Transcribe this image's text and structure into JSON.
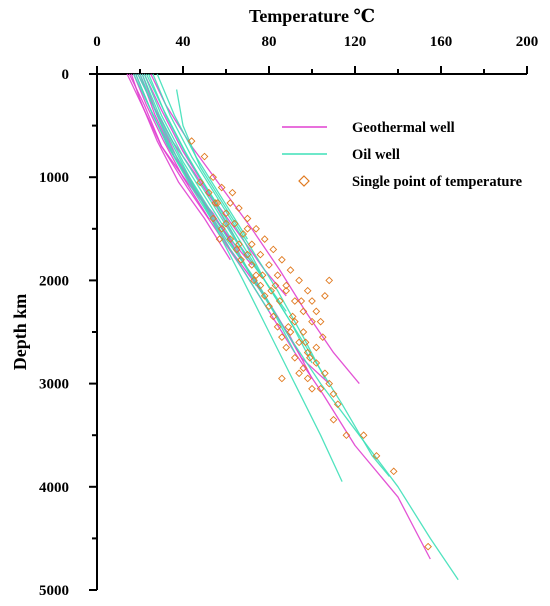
{
  "chart_data": {
    "type": "line",
    "xlabel": "Temperature ℃",
    "ylabel": "Depth km",
    "xlim": [
      0,
      200
    ],
    "ylim": [
      0,
      5000
    ],
    "x_ticks": [
      0,
      40,
      80,
      120,
      160,
      200
    ],
    "y_ticks": [
      0,
      1000,
      2000,
      3000,
      4000,
      5000
    ],
    "x_axis_position": "top",
    "y_axis_inverted": true,
    "grid": false,
    "legend_position": "top-right",
    "legend": [
      {
        "label": "Geothermal well",
        "marker": "line",
        "color": "#e040d0"
      },
      {
        "label": "Oil well",
        "marker": "line",
        "color": "#3ee0b8"
      },
      {
        "label": "Single point of temperature",
        "marker": "diamond",
        "color": "#e07a20"
      }
    ],
    "series": [
      {
        "name": "Geothermal well",
        "kind": "line",
        "color": "#e040d0",
        "lines": [
          [
            [
              15,
              0
            ],
            [
              22,
              300
            ],
            [
              30,
              700
            ],
            [
              42,
              1100
            ],
            [
              55,
              1500
            ],
            [
              68,
              1900
            ],
            [
              80,
              2300
            ],
            [
              92,
              2700
            ],
            [
              105,
              3100
            ],
            [
              120,
              3600
            ],
            [
              140,
              4100
            ],
            [
              155,
              4700
            ]
          ],
          [
            [
              18,
              0
            ],
            [
              24,
              300
            ],
            [
              33,
              700
            ],
            [
              46,
              1150
            ],
            [
              60,
              1550
            ],
            [
              72,
              1950
            ],
            [
              84,
              2350
            ],
            [
              95,
              2750
            ],
            [
              108,
              3000
            ]
          ],
          [
            [
              20,
              0
            ],
            [
              27,
              400
            ],
            [
              36,
              800
            ],
            [
              48,
              1200
            ],
            [
              62,
              1700
            ],
            [
              76,
              2100
            ],
            [
              90,
              2550
            ],
            [
              100,
              2950
            ]
          ],
          [
            [
              16,
              0
            ],
            [
              20,
              250
            ],
            [
              28,
              650
            ],
            [
              38,
              1050
            ],
            [
              50,
              1400
            ],
            [
              62,
              1800
            ]
          ],
          [
            [
              22,
              0
            ],
            [
              30,
              350
            ],
            [
              40,
              750
            ],
            [
              52,
              1150
            ],
            [
              66,
              1550
            ],
            [
              78,
              1900
            ],
            [
              88,
              2150
            ]
          ],
          [
            [
              25,
              0
            ],
            [
              32,
              300
            ],
            [
              44,
              700
            ],
            [
              58,
              1100
            ],
            [
              72,
              1500
            ],
            [
              85,
              1900
            ],
            [
              97,
              2300
            ],
            [
              110,
              2700
            ],
            [
              122,
              3000
            ]
          ],
          [
            [
              14,
              0
            ],
            [
              22,
              350
            ],
            [
              30,
              700
            ],
            [
              42,
              1050
            ],
            [
              54,
              1350
            ],
            [
              64,
              1700
            ]
          ],
          [
            [
              19,
              0
            ],
            [
              26,
              300
            ],
            [
              35,
              650
            ],
            [
              45,
              950
            ],
            [
              56,
              1300
            ],
            [
              66,
              1650
            ],
            [
              78,
              2000
            ]
          ],
          [
            [
              21,
              0
            ],
            [
              28,
              400
            ],
            [
              38,
              850
            ],
            [
              50,
              1250
            ],
            [
              62,
              1600
            ],
            [
              72,
              1850
            ]
          ],
          [
            [
              17,
              0
            ],
            [
              23,
              300
            ],
            [
              31,
              650
            ],
            [
              40,
              1000
            ],
            [
              52,
              1400
            ]
          ]
        ]
      },
      {
        "name": "Oil well",
        "kind": "line",
        "color": "#3ee0b8",
        "lines": [
          [
            [
              18,
              0
            ],
            [
              26,
              400
            ],
            [
              36,
              800
            ],
            [
              48,
              1200
            ],
            [
              60,
              1600
            ],
            [
              74,
              2000
            ],
            [
              88,
              2500
            ],
            [
              104,
              3000
            ],
            [
              122,
              3500
            ],
            [
              140,
              4000
            ],
            [
              155,
              4500
            ],
            [
              168,
              4900
            ]
          ],
          [
            [
              20,
              0
            ],
            [
              28,
              400
            ],
            [
              38,
              800
            ],
            [
              48,
              1200
            ],
            [
              58,
              1600
            ],
            [
              68,
              2000
            ],
            [
              80,
              2500
            ],
            [
              92,
              3000
            ],
            [
              104,
              3500
            ],
            [
              114,
              3950
            ]
          ],
          [
            [
              22,
              0
            ],
            [
              30,
              400
            ],
            [
              40,
              800
            ],
            [
              52,
              1200
            ],
            [
              64,
              1600
            ],
            [
              78,
              2000
            ],
            [
              90,
              2400
            ],
            [
              102,
              2800
            ],
            [
              114,
              3200
            ],
            [
              128,
              3700
            ],
            [
              136,
              3900
            ]
          ],
          [
            [
              24,
              0
            ],
            [
              32,
              400
            ],
            [
              42,
              800
            ],
            [
              54,
              1200
            ],
            [
              66,
              1600
            ],
            [
              78,
              2000
            ],
            [
              90,
              2400
            ],
            [
              100,
              2800
            ]
          ],
          [
            [
              19,
              0
            ],
            [
              26,
              300
            ],
            [
              34,
              700
            ],
            [
              46,
              1100
            ],
            [
              58,
              1500
            ],
            [
              70,
              1900
            ],
            [
              82,
              2300
            ],
            [
              92,
              2700
            ]
          ],
          [
            [
              26,
              0
            ],
            [
              34,
              400
            ],
            [
              44,
              800
            ],
            [
              56,
              1200
            ],
            [
              68,
              1600
            ],
            [
              78,
              2000
            ],
            [
              88,
              2300
            ]
          ],
          [
            [
              21,
              0
            ],
            [
              29,
              400
            ],
            [
              40,
              850
            ],
            [
              52,
              1250
            ],
            [
              64,
              1650
            ],
            [
              74,
              2050
            ]
          ],
          [
            [
              23,
              0
            ],
            [
              31,
              350
            ],
            [
              41,
              750
            ],
            [
              52,
              1150
            ],
            [
              62,
              1500
            ],
            [
              70,
              1800
            ]
          ],
          [
            [
              37,
              150
            ],
            [
              40,
              500
            ],
            [
              48,
              900
            ],
            [
              60,
              1300
            ],
            [
              72,
              1700
            ],
            [
              84,
              2100
            ],
            [
              96,
              2550
            ],
            [
              106,
              2950
            ]
          ],
          [
            [
              17,
              0
            ],
            [
              25,
              350
            ],
            [
              33,
              700
            ],
            [
              44,
              1100
            ],
            [
              56,
              1500
            ],
            [
              68,
              1900
            ],
            [
              80,
              2300
            ]
          ],
          [
            [
              28,
              0
            ],
            [
              36,
              400
            ],
            [
              46,
              800
            ],
            [
              58,
              1200
            ],
            [
              70,
              1600
            ]
          ]
        ]
      },
      {
        "name": "Single point of temperature",
        "kind": "scatter",
        "color": "#e07a20",
        "points": [
          [
            44,
            650
          ],
          [
            50,
            800
          ],
          [
            54,
            1000
          ],
          [
            58,
            1100
          ],
          [
            62,
            1250
          ],
          [
            66,
            1300
          ],
          [
            70,
            1400
          ],
          [
            74,
            1500
          ],
          [
            78,
            1600
          ],
          [
            82,
            1700
          ],
          [
            86,
            1800
          ],
          [
            90,
            1900
          ],
          [
            94,
            2000
          ],
          [
            98,
            2100
          ],
          [
            100,
            2200
          ],
          [
            102,
            2300
          ],
          [
            104,
            2400
          ],
          [
            96,
            2300
          ],
          [
            92,
            2200
          ],
          [
            88,
            2050
          ],
          [
            84,
            1950
          ],
          [
            80,
            1850
          ],
          [
            76,
            1750
          ],
          [
            72,
            1650
          ],
          [
            68,
            1550
          ],
          [
            64,
            1450
          ],
          [
            60,
            1350
          ],
          [
            56,
            1250
          ],
          [
            52,
            1150
          ],
          [
            48,
            1050
          ],
          [
            90,
            2500
          ],
          [
            94,
            2600
          ],
          [
            98,
            2700
          ],
          [
            102,
            2800
          ],
          [
            106,
            2900
          ],
          [
            108,
            3000
          ],
          [
            110,
            3100
          ],
          [
            112,
            3200
          ],
          [
            96,
            2850
          ],
          [
            92,
            2750
          ],
          [
            88,
            2650
          ],
          [
            86,
            2550
          ],
          [
            84,
            2450
          ],
          [
            82,
            2350
          ],
          [
            80,
            2250
          ],
          [
            78,
            2150
          ],
          [
            76,
            2050
          ],
          [
            74,
            1950
          ],
          [
            72,
            1850
          ],
          [
            70,
            1750
          ],
          [
            66,
            1650
          ],
          [
            62,
            1600
          ],
          [
            58,
            1500
          ],
          [
            54,
            1400
          ],
          [
            108,
            2000
          ],
          [
            106,
            2150
          ],
          [
            100,
            2400
          ],
          [
            96,
            2500
          ],
          [
            86,
            2950
          ],
          [
            102,
            2650
          ],
          [
            104,
            3050
          ],
          [
            110,
            3350
          ],
          [
            116,
            3500
          ],
          [
            124,
            3500
          ],
          [
            130,
            3700
          ],
          [
            138,
            3850
          ],
          [
            154,
            4580
          ],
          [
            88,
            2100
          ],
          [
            92,
            2400
          ],
          [
            94,
            2900
          ],
          [
            98,
            2950
          ],
          [
            100,
            3050
          ],
          [
            85,
            2200
          ],
          [
            83,
            2050
          ],
          [
            70,
            1500
          ],
          [
            65,
            1700
          ],
          [
            60,
            1450
          ],
          [
            57,
            1600
          ],
          [
            55,
            1250
          ],
          [
            63,
            1150
          ],
          [
            67,
            1800
          ],
          [
            73,
            2000
          ],
          [
            77,
            1950
          ],
          [
            81,
            2100
          ],
          [
            89,
            2450
          ],
          [
            91,
            2350
          ],
          [
            95,
            2200
          ],
          [
            97,
            2600
          ],
          [
            99,
            2750
          ],
          [
            105,
            2550
          ]
        ]
      }
    ]
  }
}
